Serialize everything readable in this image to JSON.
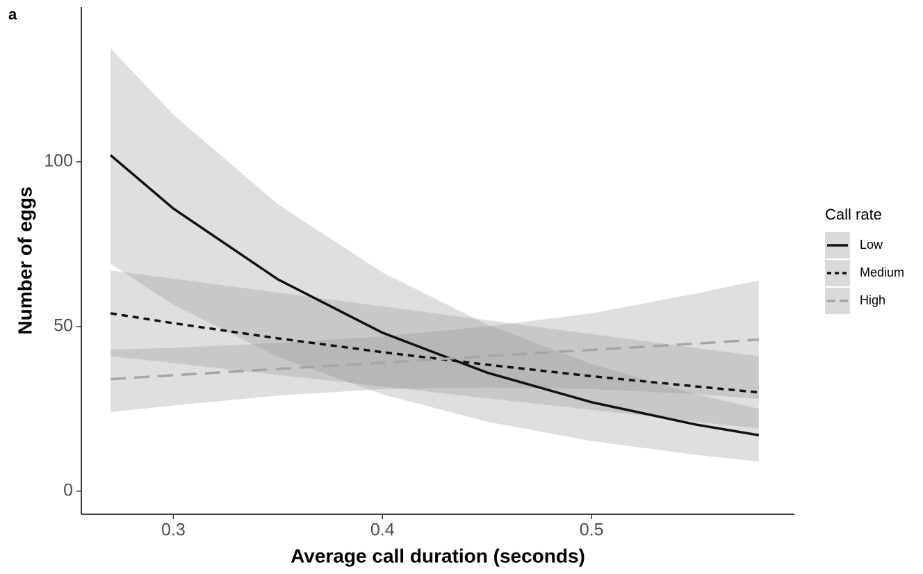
{
  "chart_data": {
    "type": "line",
    "panel_label": "a",
    "x_label": "Average call duration (seconds)",
    "y_label": "Number of eggs",
    "xlim": [
      0.256,
      0.597
    ],
    "ylim": [
      -7,
      147
    ],
    "xticks": [
      0.3,
      0.4,
      0.5
    ],
    "yticks": [
      0,
      50,
      100
    ],
    "legend_title": "Call rate",
    "legend_position": "right",
    "band_color": "#8c8c8c",
    "x": [
      0.27,
      0.3,
      0.35,
      0.4,
      0.45,
      0.5,
      0.55,
      0.58
    ],
    "series": [
      {
        "name": "Low",
        "color": "#111111",
        "dash": "solid",
        "values": [
          102,
          85.8,
          64.3,
          48.1,
          36.0,
          27.0,
          20.2,
          17.0
        ],
        "lower": [
          69,
          56.6,
          40.8,
          29.4,
          21.1,
          15.2,
          11.0,
          9
        ],
        "upper": [
          134.5,
          114.3,
          87.1,
          66.4,
          50.6,
          38.6,
          29.4,
          25
        ]
      },
      {
        "name": "Medium",
        "color": "#111111",
        "dash": "short",
        "values": [
          54,
          51.0,
          46.4,
          42.2,
          38.4,
          34.9,
          31.8,
          30
        ],
        "lower": [
          41,
          38.9,
          35.3,
          31.8,
          28.2,
          24.7,
          21.1,
          19
        ],
        "upper": [
          67,
          64.5,
          60.3,
          56.1,
          51.9,
          47.7,
          43.5,
          41
        ]
      },
      {
        "name": "High",
        "color": "#a6a6a6",
        "dash": "long",
        "values": [
          34,
          35.2,
          37.1,
          39.0,
          41.0,
          42.9,
          44.8,
          46
        ],
        "lower": [
          24,
          26,
          29,
          31,
          31.5,
          31,
          29.5,
          28
        ],
        "upper": [
          43,
          43.5,
          45,
          47,
          50,
          54,
          60,
          64
        ]
      }
    ]
  }
}
